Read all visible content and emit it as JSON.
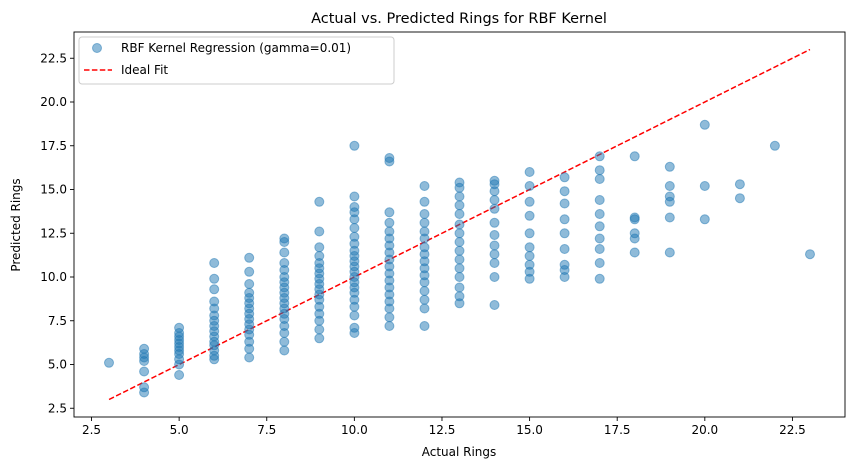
{
  "chart_data": {
    "type": "scatter",
    "title": "Actual vs. Predicted Rings for RBF Kernel",
    "xlabel": "Actual Rings",
    "ylabel": "Predicted Rings",
    "xlim": [
      2.0,
      24.0
    ],
    "ylim": [
      2.0,
      24.0
    ],
    "xticks": [
      2.5,
      5.0,
      7.5,
      10.0,
      12.5,
      15.0,
      17.5,
      20.0,
      22.5
    ],
    "yticks": [
      2.5,
      5.0,
      7.5,
      10.0,
      12.5,
      15.0,
      17.5,
      20.0,
      22.5
    ],
    "grid": false,
    "legend_position": "top-left",
    "colors": {
      "points": "#1f77b4",
      "ideal": "#ff0000"
    },
    "series": [
      {
        "name": "RBF Kernel Regression (gamma=0.01)",
        "kind": "scatter",
        "points": [
          [
            3,
            5.1
          ],
          [
            4,
            3.4
          ],
          [
            4,
            3.7
          ],
          [
            4,
            4.6
          ],
          [
            4,
            5.2
          ],
          [
            4,
            5.4
          ],
          [
            4,
            5.6
          ],
          [
            4,
            5.9
          ],
          [
            5,
            4.4
          ],
          [
            5,
            5.0
          ],
          [
            5,
            5.3
          ],
          [
            5,
            5.6
          ],
          [
            5,
            5.8
          ],
          [
            5,
            6.0
          ],
          [
            5,
            6.2
          ],
          [
            5,
            6.4
          ],
          [
            5,
            6.6
          ],
          [
            5,
            6.8
          ],
          [
            5,
            7.1
          ],
          [
            6,
            5.3
          ],
          [
            6,
            5.5
          ],
          [
            6,
            5.8
          ],
          [
            6,
            6.1
          ],
          [
            6,
            6.3
          ],
          [
            6,
            6.6
          ],
          [
            6,
            6.9
          ],
          [
            6,
            7.2
          ],
          [
            6,
            7.5
          ],
          [
            6,
            7.8
          ],
          [
            6,
            8.2
          ],
          [
            6,
            8.6
          ],
          [
            6,
            9.3
          ],
          [
            6,
            9.9
          ],
          [
            6,
            10.8
          ],
          [
            7,
            5.4
          ],
          [
            7,
            5.9
          ],
          [
            7,
            6.3
          ],
          [
            7,
            6.7
          ],
          [
            7,
            7.0
          ],
          [
            7,
            7.3
          ],
          [
            7,
            7.6
          ],
          [
            7,
            7.9
          ],
          [
            7,
            8.2
          ],
          [
            7,
            8.5
          ],
          [
            7,
            8.8
          ],
          [
            7,
            9.1
          ],
          [
            7,
            9.6
          ],
          [
            7,
            10.3
          ],
          [
            7,
            11.1
          ],
          [
            8,
            5.8
          ],
          [
            8,
            6.3
          ],
          [
            8,
            6.8
          ],
          [
            8,
            7.2
          ],
          [
            8,
            7.6
          ],
          [
            8,
            7.9
          ],
          [
            8,
            8.2
          ],
          [
            8,
            8.5
          ],
          [
            8,
            8.8
          ],
          [
            8,
            9.1
          ],
          [
            8,
            9.4
          ],
          [
            8,
            9.7
          ],
          [
            8,
            10.0
          ],
          [
            8,
            10.4
          ],
          [
            8,
            10.8
          ],
          [
            8,
            11.4
          ],
          [
            8,
            12.0
          ],
          [
            8,
            12.2
          ],
          [
            9,
            6.5
          ],
          [
            9,
            7.0
          ],
          [
            9,
            7.5
          ],
          [
            9,
            7.9
          ],
          [
            9,
            8.3
          ],
          [
            9,
            8.7
          ],
          [
            9,
            9.0
          ],
          [
            9,
            9.3
          ],
          [
            9,
            9.6
          ],
          [
            9,
            9.9
          ],
          [
            9,
            10.2
          ],
          [
            9,
            10.5
          ],
          [
            9,
            10.8
          ],
          [
            9,
            11.2
          ],
          [
            9,
            11.7
          ],
          [
            9,
            12.6
          ],
          [
            9,
            14.3
          ],
          [
            10,
            6.8
          ],
          [
            10,
            7.1
          ],
          [
            10,
            7.8
          ],
          [
            10,
            8.3
          ],
          [
            10,
            8.7
          ],
          [
            10,
            9.1
          ],
          [
            10,
            9.4
          ],
          [
            10,
            9.7
          ],
          [
            10,
            10.0
          ],
          [
            10,
            10.3
          ],
          [
            10,
            10.6
          ],
          [
            10,
            10.9
          ],
          [
            10,
            11.2
          ],
          [
            10,
            11.5
          ],
          [
            10,
            11.9
          ],
          [
            10,
            12.3
          ],
          [
            10,
            12.8
          ],
          [
            10,
            13.3
          ],
          [
            10,
            13.7
          ],
          [
            10,
            14.0
          ],
          [
            10,
            14.6
          ],
          [
            10,
            17.5
          ],
          [
            11,
            7.2
          ],
          [
            11,
            7.7
          ],
          [
            11,
            8.2
          ],
          [
            11,
            8.6
          ],
          [
            11,
            9.0
          ],
          [
            11,
            9.4
          ],
          [
            11,
            9.8
          ],
          [
            11,
            10.2
          ],
          [
            11,
            10.6
          ],
          [
            11,
            11.0
          ],
          [
            11,
            11.4
          ],
          [
            11,
            11.8
          ],
          [
            11,
            12.2
          ],
          [
            11,
            12.6
          ],
          [
            11,
            13.1
          ],
          [
            11,
            13.7
          ],
          [
            11,
            16.6
          ],
          [
            11,
            16.8
          ],
          [
            12,
            7.2
          ],
          [
            12,
            8.2
          ],
          [
            12,
            8.7
          ],
          [
            12,
            9.2
          ],
          [
            12,
            9.7
          ],
          [
            12,
            10.1
          ],
          [
            12,
            10.5
          ],
          [
            12,
            10.9
          ],
          [
            12,
            11.3
          ],
          [
            12,
            11.7
          ],
          [
            12,
            12.2
          ],
          [
            12,
            12.6
          ],
          [
            12,
            13.1
          ],
          [
            12,
            13.6
          ],
          [
            12,
            14.3
          ],
          [
            12,
            15.2
          ],
          [
            13,
            8.5
          ],
          [
            13,
            8.9
          ],
          [
            13,
            9.4
          ],
          [
            13,
            10.0
          ],
          [
            13,
            10.5
          ],
          [
            13,
            11.0
          ],
          [
            13,
            11.5
          ],
          [
            13,
            12.0
          ],
          [
            13,
            12.5
          ],
          [
            13,
            13.0
          ],
          [
            13,
            13.6
          ],
          [
            13,
            14.1
          ],
          [
            13,
            14.6
          ],
          [
            13,
            15.1
          ],
          [
            13,
            15.4
          ],
          [
            14,
            8.4
          ],
          [
            14,
            10.0
          ],
          [
            14,
            10.8
          ],
          [
            14,
            11.3
          ],
          [
            14,
            11.8
          ],
          [
            14,
            12.4
          ],
          [
            14,
            13.1
          ],
          [
            14,
            13.9
          ],
          [
            14,
            14.4
          ],
          [
            14,
            14.9
          ],
          [
            14,
            15.3
          ],
          [
            14,
            15.5
          ],
          [
            15,
            9.9
          ],
          [
            15,
            10.3
          ],
          [
            15,
            10.7
          ],
          [
            15,
            11.2
          ],
          [
            15,
            11.7
          ],
          [
            15,
            12.5
          ],
          [
            15,
            13.5
          ],
          [
            15,
            14.3
          ],
          [
            15,
            15.2
          ],
          [
            15,
            16.0
          ],
          [
            16,
            10.0
          ],
          [
            16,
            10.4
          ],
          [
            16,
            10.7
          ],
          [
            16,
            11.6
          ],
          [
            16,
            12.5
          ],
          [
            16,
            13.3
          ],
          [
            16,
            14.2
          ],
          [
            16,
            14.9
          ],
          [
            16,
            15.7
          ],
          [
            17,
            9.9
          ],
          [
            17,
            10.8
          ],
          [
            17,
            11.6
          ],
          [
            17,
            12.2
          ],
          [
            17,
            12.9
          ],
          [
            17,
            13.6
          ],
          [
            17,
            14.4
          ],
          [
            17,
            15.6
          ],
          [
            17,
            16.1
          ],
          [
            17,
            16.9
          ],
          [
            18,
            11.4
          ],
          [
            18,
            12.2
          ],
          [
            18,
            12.5
          ],
          [
            18,
            13.3
          ],
          [
            18,
            13.4
          ],
          [
            18,
            16.9
          ],
          [
            19,
            11.4
          ],
          [
            19,
            13.4
          ],
          [
            19,
            14.3
          ],
          [
            19,
            14.6
          ],
          [
            19,
            15.2
          ],
          [
            19,
            16.3
          ],
          [
            20,
            13.3
          ],
          [
            20,
            15.2
          ],
          [
            20,
            18.7
          ],
          [
            21,
            14.5
          ],
          [
            21,
            15.3
          ],
          [
            22,
            17.5
          ],
          [
            23,
            11.3
          ]
        ]
      },
      {
        "name": "Ideal Fit",
        "kind": "line",
        "style": "dashed",
        "x": [
          3,
          23
        ],
        "y": [
          3,
          23
        ]
      }
    ]
  }
}
